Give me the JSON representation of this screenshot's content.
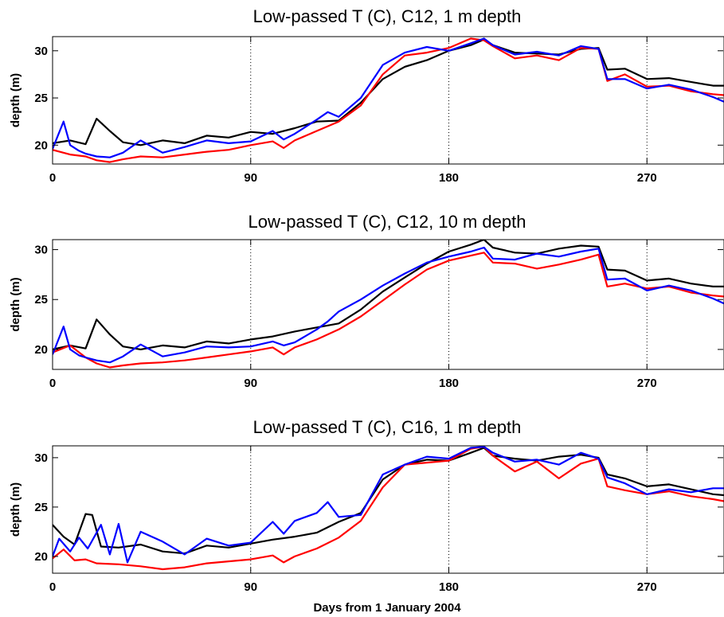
{
  "xlabel_bottom": "Days from 1 January 2004",
  "colors": {
    "black": "#000000",
    "red": "#ff0000",
    "blue": "#0000ff"
  },
  "chart_data": [
    {
      "type": "line",
      "title": "Low-passed T (C), C12, 1 m depth",
      "xlabel": "",
      "ylabel": "depth (m)",
      "xlim": [
        0,
        305
      ],
      "ylim": [
        18,
        31.5
      ],
      "xticks": [
        0,
        90,
        180,
        270
      ],
      "yticks": [
        20,
        25,
        30
      ],
      "grid": "vertical dotted at x ticks",
      "series": [
        {
          "color": "#000000",
          "x": [
            0,
            8,
            15,
            20,
            26,
            32,
            40,
            50,
            60,
            70,
            80,
            90,
            100,
            110,
            120,
            130,
            140,
            150,
            160,
            170,
            180,
            190,
            196,
            200,
            210,
            220,
            230,
            240,
            248,
            252,
            260,
            270,
            280,
            290,
            300,
            305
          ],
          "y": [
            20.2,
            20.5,
            20.1,
            22.8,
            21.5,
            20.3,
            20.0,
            20.5,
            20.2,
            21.0,
            20.8,
            21.4,
            21.2,
            21.8,
            22.5,
            22.6,
            24.5,
            27.0,
            28.3,
            29.0,
            30.0,
            30.6,
            31.2,
            30.6,
            29.8,
            29.7,
            29.6,
            30.2,
            30.3,
            28.0,
            28.1,
            27.0,
            27.1,
            26.7,
            26.3,
            26.3
          ]
        },
        {
          "color": "#ff0000",
          "x": [
            0,
            8,
            15,
            20,
            26,
            32,
            40,
            50,
            60,
            70,
            80,
            90,
            100,
            105,
            110,
            120,
            130,
            140,
            150,
            160,
            170,
            180,
            190,
            196,
            200,
            210,
            220,
            230,
            240,
            248,
            252,
            260,
            270,
            280,
            290,
            300,
            305
          ],
          "y": [
            19.5,
            19.0,
            18.8,
            18.4,
            18.2,
            18.5,
            18.8,
            18.7,
            19.0,
            19.3,
            19.5,
            20.0,
            20.4,
            19.7,
            20.5,
            21.5,
            22.5,
            24.2,
            27.5,
            29.5,
            29.8,
            30.3,
            31.3,
            31.1,
            30.5,
            29.2,
            29.5,
            29.0,
            30.3,
            30.2,
            26.8,
            27.5,
            26.2,
            26.3,
            25.7,
            25.4,
            25.3
          ]
        },
        {
          "color": "#0000ff",
          "x": [
            0,
            5,
            8,
            12,
            15,
            20,
            26,
            32,
            40,
            50,
            60,
            70,
            80,
            90,
            100,
            105,
            110,
            120,
            125,
            130,
            140,
            150,
            160,
            170,
            180,
            190,
            196,
            200,
            210,
            220,
            230,
            240,
            248,
            252,
            260,
            270,
            280,
            290,
            300,
            305
          ],
          "y": [
            19.6,
            22.5,
            20.0,
            19.4,
            19.1,
            18.8,
            18.7,
            19.2,
            20.5,
            19.2,
            19.8,
            20.5,
            20.2,
            20.4,
            21.5,
            20.6,
            21.2,
            22.7,
            23.5,
            23.0,
            25.0,
            28.5,
            29.8,
            30.4,
            30.0,
            30.8,
            31.3,
            30.6,
            29.6,
            29.9,
            29.5,
            30.5,
            30.2,
            27.0,
            27.0,
            26.0,
            26.4,
            25.9,
            25.1,
            24.6
          ]
        }
      ]
    },
    {
      "type": "line",
      "title": "Low-passed T (C), C12, 10 m depth",
      "xlabel": "",
      "ylabel": "depth (m)",
      "xlim": [
        0,
        305
      ],
      "ylim": [
        18,
        31
      ],
      "xticks": [
        0,
        90,
        180,
        270
      ],
      "yticks": [
        20,
        25,
        30
      ],
      "grid": "vertical dotted at x ticks",
      "series": [
        {
          "color": "#000000",
          "x": [
            0,
            8,
            15,
            20,
            26,
            32,
            40,
            50,
            60,
            70,
            80,
            90,
            100,
            110,
            120,
            130,
            140,
            150,
            160,
            170,
            180,
            190,
            196,
            200,
            210,
            220,
            230,
            240,
            248,
            252,
            260,
            270,
            280,
            290,
            300,
            305
          ],
          "y": [
            20.0,
            20.4,
            20.1,
            23.0,
            21.5,
            20.3,
            20.0,
            20.4,
            20.2,
            20.8,
            20.6,
            21.0,
            21.3,
            21.8,
            22.2,
            22.6,
            24.0,
            25.8,
            27.2,
            28.6,
            29.8,
            30.5,
            31.0,
            30.2,
            29.7,
            29.6,
            30.1,
            30.4,
            30.3,
            28.0,
            27.9,
            26.9,
            27.1,
            26.6,
            26.3,
            26.3
          ]
        },
        {
          "color": "#ff0000",
          "x": [
            0,
            8,
            15,
            20,
            26,
            32,
            40,
            50,
            60,
            70,
            80,
            90,
            100,
            105,
            110,
            120,
            130,
            140,
            150,
            160,
            170,
            180,
            190,
            196,
            200,
            210,
            220,
            230,
            240,
            248,
            252,
            260,
            270,
            280,
            290,
            300,
            305
          ],
          "y": [
            19.7,
            20.4,
            19.2,
            18.6,
            18.2,
            18.4,
            18.6,
            18.7,
            18.9,
            19.2,
            19.5,
            19.8,
            20.2,
            19.5,
            20.2,
            21.0,
            22.0,
            23.3,
            24.9,
            26.5,
            28.0,
            28.9,
            29.4,
            29.7,
            28.7,
            28.6,
            28.1,
            28.5,
            29.0,
            29.5,
            26.3,
            26.6,
            26.1,
            26.3,
            25.7,
            25.4,
            25.3
          ]
        },
        {
          "color": "#0000ff",
          "x": [
            0,
            5,
            8,
            12,
            15,
            20,
            26,
            32,
            40,
            50,
            60,
            70,
            80,
            90,
            100,
            105,
            110,
            120,
            125,
            130,
            140,
            150,
            160,
            170,
            180,
            190,
            196,
            200,
            210,
            220,
            230,
            240,
            248,
            252,
            260,
            270,
            280,
            290,
            300,
            305
          ],
          "y": [
            19.5,
            22.3,
            20.0,
            19.4,
            19.2,
            18.9,
            18.7,
            19.3,
            20.5,
            19.3,
            19.7,
            20.3,
            20.2,
            20.3,
            20.8,
            20.4,
            20.7,
            22.0,
            22.8,
            23.8,
            25.0,
            26.4,
            27.6,
            28.7,
            29.3,
            29.8,
            30.2,
            29.1,
            29.0,
            29.6,
            29.3,
            29.8,
            30.1,
            27.0,
            27.1,
            25.9,
            26.4,
            25.9,
            25.1,
            24.6
          ]
        }
      ]
    },
    {
      "type": "line",
      "title": "Low-passed T (C), C16, 1 m depth",
      "xlabel": "Days from 1 January 2004",
      "ylabel": "depth (m)",
      "xlim": [
        0,
        305
      ],
      "ylim": [
        18.3,
        31.2
      ],
      "xticks": [
        0,
        90,
        180,
        270
      ],
      "yticks": [
        20,
        25,
        30
      ],
      "grid": "vertical dotted at x ticks",
      "series": [
        {
          "color": "#000000",
          "x": [
            0,
            5,
            10,
            15,
            18,
            22,
            30,
            40,
            50,
            60,
            70,
            80,
            90,
            100,
            110,
            120,
            130,
            140,
            150,
            160,
            170,
            180,
            190,
            196,
            200,
            210,
            220,
            230,
            240,
            248,
            252,
            260,
            270,
            280,
            290,
            300,
            305
          ],
          "y": [
            23.2,
            22.0,
            21.2,
            24.3,
            24.2,
            21.0,
            20.9,
            21.2,
            20.5,
            20.3,
            21.1,
            20.9,
            21.3,
            21.7,
            22.0,
            22.4,
            23.5,
            24.4,
            27.8,
            29.3,
            29.8,
            29.7,
            30.5,
            31.0,
            30.2,
            29.9,
            29.7,
            30.1,
            30.3,
            30.0,
            28.3,
            27.9,
            27.1,
            27.3,
            26.8,
            26.3,
            26.2
          ]
        },
        {
          "color": "#ff0000",
          "x": [
            0,
            5,
            10,
            15,
            20,
            30,
            40,
            50,
            60,
            70,
            80,
            90,
            100,
            105,
            110,
            120,
            130,
            140,
            150,
            160,
            170,
            180,
            190,
            196,
            200,
            210,
            220,
            230,
            240,
            248,
            252,
            260,
            270,
            280,
            290,
            300,
            305
          ],
          "y": [
            19.8,
            20.7,
            19.6,
            19.7,
            19.3,
            19.2,
            19.0,
            18.7,
            18.9,
            19.3,
            19.5,
            19.7,
            20.1,
            19.4,
            20.0,
            20.8,
            21.9,
            23.6,
            27.0,
            29.3,
            29.5,
            29.7,
            30.9,
            31.1,
            30.2,
            28.6,
            29.6,
            27.9,
            29.4,
            29.9,
            27.1,
            26.7,
            26.3,
            26.6,
            26.1,
            25.8,
            25.6
          ]
        },
        {
          "color": "#0000ff",
          "x": [
            0,
            3,
            8,
            12,
            16,
            22,
            26,
            30,
            34,
            40,
            50,
            60,
            70,
            80,
            90,
            100,
            105,
            110,
            120,
            125,
            130,
            140,
            150,
            160,
            170,
            180,
            190,
            196,
            200,
            210,
            220,
            230,
            240,
            248,
            252,
            260,
            270,
            280,
            290,
            300,
            305
          ],
          "y": [
            20.0,
            21.8,
            20.5,
            21.9,
            20.8,
            23.2,
            20.2,
            23.3,
            19.4,
            22.5,
            21.5,
            20.2,
            21.8,
            21.1,
            21.4,
            23.5,
            22.3,
            23.6,
            24.4,
            25.5,
            24.0,
            24.2,
            28.3,
            29.3,
            30.1,
            29.9,
            31.0,
            31.1,
            30.5,
            29.6,
            29.8,
            29.3,
            30.5,
            29.9,
            28.0,
            27.4,
            26.3,
            26.8,
            26.5,
            26.9,
            26.9
          ]
        }
      ]
    }
  ]
}
